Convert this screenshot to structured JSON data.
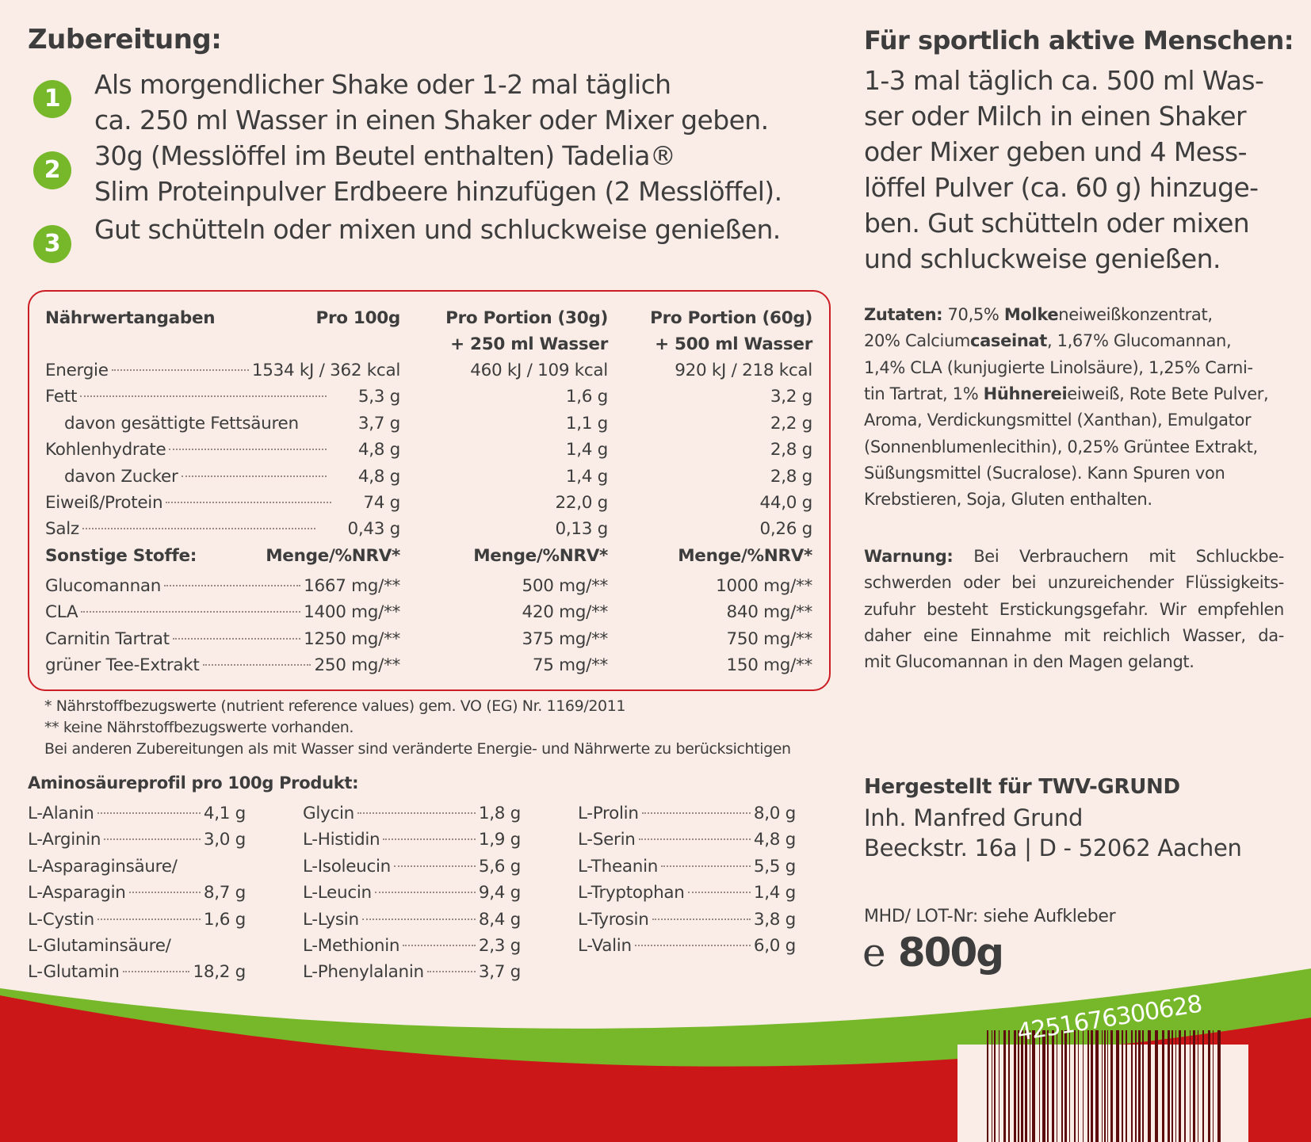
{
  "preparation": {
    "title": "Zubereitung:",
    "steps": [
      {
        "num": "1",
        "lines": [
          "Als morgendlicher Shake oder 1-2 mal täglich",
          "ca. 250 ml Wasser in einen Shaker oder Mixer geben."
        ]
      },
      {
        "num": "2",
        "lines": [
          "30g (Messlöffel im Beutel enthalten) Tadelia®",
          "Slim Proteinpulver Erdbeere hinzufügen (2 Messlöffel)."
        ]
      },
      {
        "num": "3",
        "lines": [
          "Gut schütteln oder mixen und schluckweise genießen."
        ]
      }
    ]
  },
  "athletes": {
    "title": "Für sportlich aktive Menschen:",
    "lines": [
      "1-3 mal täglich ca. 500 ml Was-",
      "ser oder Milch in einen Shaker",
      "oder Mixer geben und 4 Mess-",
      "löffel Pulver (ca. 60 g) hinzuge-",
      "ben. Gut schütteln oder mixen",
      "und schluckweise genießen."
    ]
  },
  "nutrition": {
    "header": {
      "label": "Nährwertangaben",
      "col1": "Pro 100g",
      "col2": [
        "Pro Portion (30g)",
        "+ 250 ml Wasser"
      ],
      "col3": [
        "Pro Portion (60g)",
        "+ 500 ml Wasser"
      ]
    },
    "rows": [
      {
        "label": "Energie",
        "v1": "1534 kJ / 362 kcal",
        "v2": "460 kJ / 109 kcal",
        "v3": "920 kJ / 218 kcal"
      },
      {
        "label": "Fett",
        "v1": "5,3 g",
        "v2": "1,6 g",
        "v3": "3,2 g"
      },
      {
        "label": "davon gesättigte Fettsäuren",
        "v1": "3,7 g",
        "v2": "1,1 g",
        "v3": "2,2 g"
      },
      {
        "label": "Kohlenhydrate",
        "v1": "4,8 g",
        "v2": "1,4 g",
        "v3": "2,8 g"
      },
      {
        "label": "davon Zucker",
        "v1": "4,8 g",
        "v2": "1,4 g",
        "v3": "2,8 g"
      },
      {
        "label": "Eiweiß/Protein",
        "v1": "74 g",
        "v2": "22,0 g",
        "v3": "44,0 g"
      },
      {
        "label": "Salz",
        "v1": "0,43 g",
        "v2": "0,13 g",
        "v3": "0,26 g"
      }
    ],
    "other_header": {
      "label": "Sonstige Stoffe:",
      "col1": "Menge/%NRV*",
      "col2": "Menge/%NRV*",
      "col3": "Menge/%NRV*"
    },
    "other_rows": [
      {
        "label": "Glucomannan",
        "v1": "1667 mg/**",
        "v2": "500 mg/**",
        "v3": "1000 mg/**"
      },
      {
        "label": "CLA",
        "v1": "1400 mg/**",
        "v2": "420 mg/**",
        "v3": "840 mg/**"
      },
      {
        "label": "Carnitin Tartrat",
        "v1": "1250 mg/**",
        "v2": "375 mg/**",
        "v3": "750 mg/**"
      },
      {
        "label": "grüner Tee-Extrakt",
        "v1": "250 mg/**",
        "v2": "75 mg/**",
        "v3": "150 mg/**"
      }
    ]
  },
  "footnotes": [
    "* Nährstoffbezugswerte (nutrient reference values) gem. VO (EG) Nr. 1169/2011",
    "** keine Nährstoffbezugswerte vorhanden.",
    "Bei anderen Zubereitungen als mit Wasser sind veränderte Energie- und Nährwerte zu berücksichtigen"
  ],
  "amino": {
    "title": "Aminosäureprofil pro 100g Produkt:",
    "columns": [
      [
        {
          "label": "L-Alanin",
          "value": "4,1 g"
        },
        {
          "label": "L-Arginin",
          "value": "3,0 g"
        },
        {
          "label": "L-Asparaginsäure/",
          "value": ""
        },
        {
          "label": "L-Asparagin",
          "value": "8,7 g"
        },
        {
          "label": "L-Cystin",
          "value": "1,6 g"
        },
        {
          "label": "L-Glutaminsäure/",
          "value": ""
        },
        {
          "label": "L-Glutamin",
          "value": "18,2 g"
        }
      ],
      [
        {
          "label": "Glycin",
          "value": "1,8 g"
        },
        {
          "label": "L-Histidin",
          "value": "1,9 g"
        },
        {
          "label": "L-Isoleucin",
          "value": "5,6 g"
        },
        {
          "label": "L-Leucin",
          "value": "9,4 g"
        },
        {
          "label": "L-Lysin",
          "value": "8,4 g"
        },
        {
          "label": "L-Methionin",
          "value": "2,3 g"
        },
        {
          "label": "L-Phenylalanin",
          "value": "3,7 g"
        }
      ],
      [
        {
          "label": "L-Prolin",
          "value": "8,0 g"
        },
        {
          "label": "L-Serin",
          "value": "4,8 g"
        },
        {
          "label": "L-Theanin",
          "value": "5,5 g"
        },
        {
          "label": "L-Tryptophan",
          "value": "1,4 g"
        },
        {
          "label": "L-Tyrosin",
          "value": "3,8 g"
        },
        {
          "label": "L-Valin",
          "value": "6,0 g"
        }
      ]
    ]
  },
  "ingredients": {
    "lines": [
      [
        {
          "t": "Zutaten:",
          "b": true
        },
        {
          "t": " 70,5% ",
          "b": false
        },
        {
          "t": "Molke",
          "b": true
        },
        {
          "t": "neiweißkonzentrat,",
          "b": false
        }
      ],
      [
        {
          "t": "20% Calcium",
          "b": false
        },
        {
          "t": "caseinat",
          "b": true
        },
        {
          "t": ", 1,67% Glucomannan,",
          "b": false
        }
      ],
      [
        {
          "t": "1,4% CLA (kunjugierte Linolsäure), 1,25% Carni-",
          "b": false
        }
      ],
      [
        {
          "t": "tin Tartrat, 1% ",
          "b": false
        },
        {
          "t": "Hühnerei",
          "b": true
        },
        {
          "t": "eiweiß, Rote Bete Pulver,",
          "b": false
        }
      ],
      [
        {
          "t": "Aroma, Verdickungsmittel (Xanthan), Emulgator",
          "b": false
        }
      ],
      [
        {
          "t": "(Sonnenblumenlecithin), 0,25% Grüntee Extrakt,",
          "b": false
        }
      ],
      [
        {
          "t": "Süßungsmittel (Sucralose). Kann Spuren von",
          "b": false
        }
      ],
      [
        {
          "t": "Krebstieren, Soja, Gluten enthalten.",
          "b": false
        }
      ]
    ]
  },
  "warning": {
    "lines": [
      [
        {
          "t": "Warnung:",
          "b": true
        },
        {
          "t": " Bei Verbrauchern mit Schluckbe-",
          "b": false
        }
      ],
      [
        {
          "t": "schwerden oder bei unzureichender Flüssigkeits-",
          "b": false
        }
      ],
      [
        {
          "t": "zufuhr besteht Erstickungsgefahr. Wir empfehlen",
          "b": false
        }
      ],
      [
        {
          "t": "daher eine Einnahme mit reichlich Wasser, da-",
          "b": false
        }
      ],
      [
        {
          "t": "mit Glucomannan in den Magen gelangt.",
          "b": false
        }
      ]
    ]
  },
  "manufacturer": {
    "title": "Hergestellt für TWV-GRUND",
    "owner": "Inh. Manfred Grund",
    "address": "Beeckstr. 16a | D - 52062 Aachen"
  },
  "lot": "MHD/ LOT-Nr: siehe Aufkleber",
  "weight": {
    "estimated_sign": "e",
    "value": "800g"
  },
  "barcode": {
    "number": "4251676300628"
  },
  "colors": {
    "background": "#faede7",
    "red": "#cc1719",
    "green": "#76b82a",
    "text": "#3d3d3d",
    "barcode": "#5c0c0c"
  }
}
